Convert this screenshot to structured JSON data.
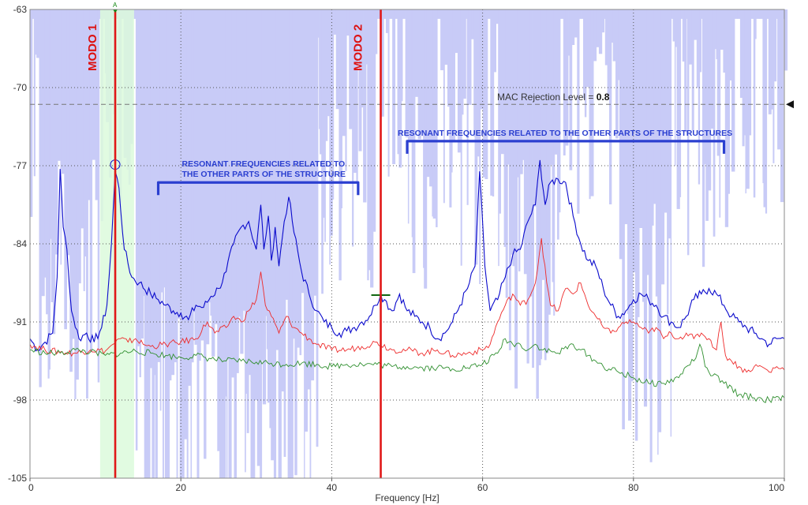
{
  "chart_data": {
    "type": "line",
    "title": "",
    "xlabel": "Frequency [Hz]",
    "ylabel": "",
    "xlim": [
      0,
      100
    ],
    "ylim": [
      -105,
      -63
    ],
    "grid": true,
    "x_ticks": [
      0,
      20,
      40,
      60,
      80,
      100
    ],
    "y_ticks": [
      -63,
      -70,
      -77,
      -84,
      -91,
      -98,
      -105
    ],
    "x_tick_labels": [
      "0",
      "20",
      "40",
      "60",
      "80",
      "100"
    ],
    "y_tick_labels": [
      "-63",
      "-70",
      "-77",
      "-84",
      "-91",
      "-98",
      "-105"
    ],
    "colors": {
      "blue": "#0a0acc",
      "red": "#ee2a2a",
      "green": "#2f8f2f",
      "mac_band": "#c8cbf7",
      "mode_line": "#e01818",
      "highlight": "#dcfadc",
      "annotation": "#2b3fd0"
    },
    "series": [
      {
        "values": [
          [
            0,
            -92.5
          ],
          [
            1,
            -93.5
          ],
          [
            2,
            -92.8
          ],
          [
            3,
            -92.0
          ],
          [
            3.6,
            -87.0
          ],
          [
            4.0,
            -77.3
          ],
          [
            4.4,
            -82.5
          ],
          [
            4.9,
            -84.5
          ],
          [
            5.5,
            -90.0
          ],
          [
            6.5,
            -92.5
          ],
          [
            7.5,
            -92.0
          ],
          [
            8.5,
            -92.8
          ],
          [
            9.5,
            -91.5
          ],
          [
            10.2,
            -89.5
          ],
          [
            10.8,
            -84.0
          ],
          [
            11.3,
            -77.5
          ],
          [
            11.8,
            -79.0
          ],
          [
            12.5,
            -84.5
          ],
          [
            13.5,
            -87.0
          ],
          [
            14.5,
            -87.5
          ],
          [
            16,
            -88.5
          ],
          [
            17,
            -89.0
          ],
          [
            18,
            -89.5
          ],
          [
            19,
            -90.0
          ],
          [
            20,
            -90.2
          ],
          [
            21,
            -90.8
          ],
          [
            22,
            -89.5
          ],
          [
            23,
            -89.7
          ],
          [
            24,
            -88.7
          ],
          [
            25,
            -88.0
          ],
          [
            26,
            -86.5
          ],
          [
            27,
            -84.0
          ],
          [
            28,
            -82.5
          ],
          [
            29,
            -82.0
          ],
          [
            30,
            -84.5
          ],
          [
            30.6,
            -80.5
          ],
          [
            31,
            -84.5
          ],
          [
            31.6,
            -81.5
          ],
          [
            32,
            -85.5
          ],
          [
            32.5,
            -82.5
          ],
          [
            33,
            -86.0
          ],
          [
            33.7,
            -82.0
          ],
          [
            34.3,
            -79.8
          ],
          [
            35,
            -83.0
          ],
          [
            36,
            -86.5
          ],
          [
            37,
            -88.5
          ],
          [
            38,
            -90.0
          ],
          [
            39,
            -91.0
          ],
          [
            40,
            -91.5
          ],
          [
            41,
            -92.0
          ],
          [
            42,
            -91.8
          ],
          [
            43,
            -91.5
          ],
          [
            44,
            -91.0
          ],
          [
            45,
            -90.5
          ],
          [
            45.8,
            -89.5
          ],
          [
            46.5,
            -88.5
          ],
          [
            47,
            -89.0
          ],
          [
            48,
            -90.0
          ],
          [
            49,
            -88.5
          ],
          [
            50,
            -90.0
          ],
          [
            51,
            -90.5
          ],
          [
            52,
            -91.0
          ],
          [
            53,
            -91.5
          ],
          [
            54,
            -92.5
          ],
          [
            55,
            -92.0
          ],
          [
            56,
            -91.0
          ],
          [
            57,
            -89.5
          ],
          [
            58,
            -88.0
          ],
          [
            59,
            -86.0
          ],
          [
            59.6,
            -77.5
          ],
          [
            60.3,
            -86.0
          ],
          [
            61,
            -90.0
          ],
          [
            62,
            -89.0
          ],
          [
            63,
            -87.0
          ],
          [
            64,
            -85.0
          ],
          [
            65,
            -84.5
          ],
          [
            66,
            -82.0
          ],
          [
            67,
            -80.5
          ],
          [
            67.6,
            -76.5
          ],
          [
            68.3,
            -80.5
          ],
          [
            69,
            -78.5
          ],
          [
            70,
            -78.2
          ],
          [
            71,
            -78.5
          ],
          [
            72,
            -81.5
          ],
          [
            73,
            -84.0
          ],
          [
            74,
            -85.5
          ],
          [
            75,
            -86.0
          ],
          [
            76,
            -88.0
          ],
          [
            77,
            -89.5
          ],
          [
            78,
            -90.5
          ],
          [
            79,
            -90.0
          ],
          [
            80,
            -89.0
          ],
          [
            81,
            -88.5
          ],
          [
            82,
            -89.0
          ],
          [
            83,
            -89.5
          ],
          [
            84,
            -90.5
          ],
          [
            85,
            -91.0
          ],
          [
            86,
            -91.5
          ],
          [
            87,
            -90.5
          ],
          [
            88,
            -89.0
          ],
          [
            89,
            -88.5
          ],
          [
            90,
            -88.0
          ],
          [
            91,
            -88.5
          ],
          [
            92,
            -89.5
          ],
          [
            93,
            -90.5
          ],
          [
            94,
            -91.0
          ],
          [
            95,
            -91.5
          ],
          [
            96,
            -92.0
          ],
          [
            97,
            -92.5
          ],
          [
            98,
            -93.0
          ],
          [
            99,
            -92.5
          ],
          [
            100,
            -92.5
          ]
        ]
      },
      {
        "values": [
          [
            0,
            -93.0
          ],
          [
            2,
            -93.5
          ],
          [
            4,
            -93.7
          ],
          [
            6,
            -93.8
          ],
          [
            8,
            -93.5
          ],
          [
            10,
            -93.6
          ],
          [
            11,
            -93.0
          ],
          [
            12,
            -92.5
          ],
          [
            13,
            -92.8
          ],
          [
            14,
            -92.5
          ],
          [
            15,
            -93.0
          ],
          [
            16,
            -93.2
          ],
          [
            18,
            -93.0
          ],
          [
            20,
            -92.8
          ],
          [
            22,
            -92.5
          ],
          [
            23.5,
            -91.0
          ],
          [
            24.5,
            -92.0
          ],
          [
            26,
            -91.5
          ],
          [
            27,
            -90.5
          ],
          [
            28,
            -91.0
          ],
          [
            29,
            -90.0
          ],
          [
            30,
            -89.0
          ],
          [
            30.6,
            -86.5
          ],
          [
            31.2,
            -89.5
          ],
          [
            32,
            -90.5
          ],
          [
            33,
            -92.0
          ],
          [
            34,
            -90.5
          ],
          [
            35,
            -91.5
          ],
          [
            36,
            -92.0
          ],
          [
            37,
            -92.5
          ],
          [
            38,
            -93.0
          ],
          [
            40,
            -93.5
          ],
          [
            42,
            -93.5
          ],
          [
            44,
            -93.2
          ],
          [
            46,
            -92.8
          ],
          [
            48,
            -93.5
          ],
          [
            50,
            -93.5
          ],
          [
            52,
            -93.8
          ],
          [
            54,
            -93.5
          ],
          [
            56,
            -94.0
          ],
          [
            58,
            -93.8
          ],
          [
            60,
            -93.5
          ],
          [
            61,
            -93.0
          ],
          [
            62,
            -91.0
          ],
          [
            63,
            -89.5
          ],
          [
            64,
            -88.5
          ],
          [
            65,
            -89.5
          ],
          [
            66,
            -89.0
          ],
          [
            67,
            -87.5
          ],
          [
            67.8,
            -83.5
          ],
          [
            68.5,
            -87.5
          ],
          [
            69,
            -89.5
          ],
          [
            70,
            -90.0
          ],
          [
            71,
            -88.0
          ],
          [
            72,
            -88.5
          ],
          [
            73,
            -87.5
          ],
          [
            74,
            -89.5
          ],
          [
            75,
            -90.5
          ],
          [
            76,
            -91.5
          ],
          [
            77,
            -92.0
          ],
          [
            78,
            -91.5
          ],
          [
            79,
            -91.0
          ],
          [
            80,
            -91.0
          ],
          [
            81,
            -91.5
          ],
          [
            82,
            -92.0
          ],
          [
            83,
            -91.5
          ],
          [
            84,
            -92.5
          ],
          [
            85,
            -92.0
          ],
          [
            86,
            -92.5
          ],
          [
            87,
            -92.0
          ],
          [
            88,
            -92.5
          ],
          [
            89,
            -92.0
          ],
          [
            90,
            -92.5
          ],
          [
            91,
            -93.5
          ],
          [
            91.6,
            -91.0
          ],
          [
            92.2,
            -94.0
          ],
          [
            93,
            -94.5
          ],
          [
            94,
            -95.0
          ],
          [
            95,
            -95.5
          ],
          [
            96,
            -95.0
          ],
          [
            97,
            -95.0
          ],
          [
            98,
            -95.5
          ],
          [
            99,
            -95.0
          ],
          [
            100,
            -95.3
          ]
        ]
      },
      {
        "values": [
          [
            0,
            -93.5
          ],
          [
            2,
            -93.8
          ],
          [
            4,
            -93.8
          ],
          [
            6,
            -93.5
          ],
          [
            8,
            -93.7
          ],
          [
            10,
            -94.0
          ],
          [
            12,
            -93.8
          ],
          [
            14,
            -93.6
          ],
          [
            16,
            -93.8
          ],
          [
            18,
            -94.0
          ],
          [
            20,
            -94.2
          ],
          [
            22,
            -94.0
          ],
          [
            24,
            -94.3
          ],
          [
            26,
            -94.5
          ],
          [
            28,
            -94.5
          ],
          [
            30,
            -94.6
          ],
          [
            32,
            -94.7
          ],
          [
            34,
            -94.8
          ],
          [
            36,
            -94.7
          ],
          [
            38,
            -94.8
          ],
          [
            40,
            -95.0
          ],
          [
            42,
            -94.8
          ],
          [
            44,
            -94.8
          ],
          [
            46,
            -94.8
          ],
          [
            48,
            -95.0
          ],
          [
            50,
            -95.0
          ],
          [
            52,
            -95.1
          ],
          [
            54,
            -95.1
          ],
          [
            56,
            -95.2
          ],
          [
            58,
            -95.1
          ],
          [
            60,
            -94.8
          ],
          [
            62,
            -93.8
          ],
          [
            63,
            -92.5
          ],
          [
            64,
            -93.0
          ],
          [
            65,
            -93.0
          ],
          [
            66,
            -93.5
          ],
          [
            67,
            -93.0
          ],
          [
            68,
            -93.5
          ],
          [
            70,
            -93.8
          ],
          [
            72,
            -93.0
          ],
          [
            73,
            -93.5
          ],
          [
            74,
            -94.0
          ],
          [
            75,
            -94.5
          ],
          [
            76,
            -95.0
          ],
          [
            78,
            -95.5
          ],
          [
            80,
            -96.0
          ],
          [
            82,
            -96.5
          ],
          [
            84,
            -96.5
          ],
          [
            86,
            -96.0
          ],
          [
            87,
            -95.0
          ],
          [
            88,
            -94.5
          ],
          [
            88.8,
            -93.0
          ],
          [
            89.5,
            -95.0
          ],
          [
            90,
            -95.5
          ],
          [
            92,
            -96.5
          ],
          [
            94,
            -97.5
          ],
          [
            96,
            -97.8
          ],
          [
            98,
            -98.0
          ],
          [
            100,
            -97.8
          ]
        ]
      }
    ],
    "mac_rejection": {
      "label": "MAC Rejection Level = ",
      "value": "0.8",
      "y": -71.5
    },
    "modes": [
      {
        "label": "MODO 1",
        "x": 11.3
      },
      {
        "label": "MODO 2",
        "x": 46.5
      }
    ],
    "highlight_band": [
      9.3,
      13.8
    ],
    "cursor_marker": "A",
    "annotations": [
      {
        "lines": [
          "RESONANT FREQUENCIES RELATED TO",
          "THE OTHER PARTS OF THE STRUCTURE"
        ],
        "x_range": [
          17,
          43.5
        ],
        "y": -78.5
      },
      {
        "lines": [
          "RESONANT FREQUENCIES RELATED TO THE OTHER PARTS OF THE STRUCTURES"
        ],
        "x_range": [
          50,
          92
        ],
        "y": -74.8
      }
    ]
  }
}
